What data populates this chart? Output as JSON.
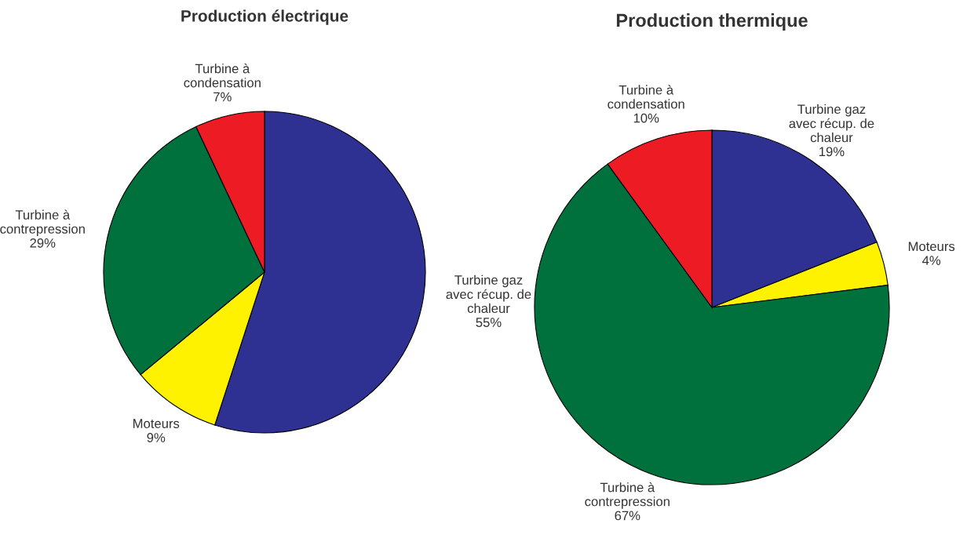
{
  "chart_data": [
    {
      "type": "pie",
      "title": "Production électrique",
      "categories": [
        "Turbine gaz\navec récup. de\nchaleur",
        "Moteurs",
        "Turbine à\ncontrepression",
        "Turbine à\ncondensation"
      ],
      "values": [
        55,
        9,
        29,
        7
      ],
      "value_labels": [
        "55%",
        "9%",
        "29%",
        "7%"
      ],
      "colors": [
        "#2e3192",
        "#fff200",
        "#00703c",
        "#ed1c24"
      ]
    },
    {
      "type": "pie",
      "title": "Production thermique",
      "categories": [
        "Turbine gaz\navec récup. de\nchaleur",
        "Moteurs",
        "Turbine à\ncontrepression",
        "Turbine à\ncondensation"
      ],
      "values": [
        19,
        4,
        67,
        10
      ],
      "value_labels": [
        "19%",
        "4%",
        "67%",
        "10%"
      ],
      "colors": [
        "#2e3192",
        "#fff200",
        "#00703c",
        "#ed1c24"
      ]
    }
  ]
}
